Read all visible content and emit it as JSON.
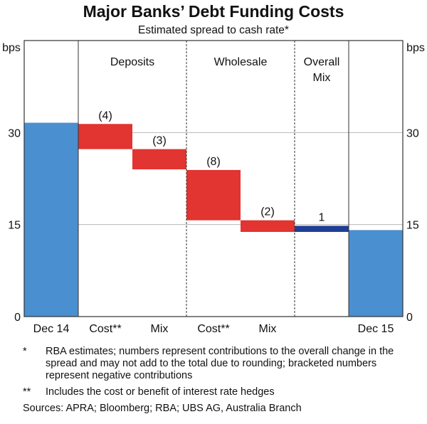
{
  "chart_data": {
    "type": "bar",
    "subtype": "waterfall",
    "title": "Major Banks’ Debt Funding Costs",
    "subtitle": "Estimated spread to cash rate*",
    "ylabel_left": "bps",
    "ylabel_right": "bps",
    "ylim": [
      0,
      45
    ],
    "yticks": [
      0,
      15,
      30
    ],
    "gridlines": [
      15,
      30
    ],
    "categories": [
      "Dec 14",
      "Cost**",
      "Mix",
      "Cost**",
      "Mix",
      "",
      "Dec 15"
    ],
    "groups": [
      {
        "label": "Deposits",
        "categories": [
          1,
          2
        ]
      },
      {
        "label": "Wholesale",
        "categories": [
          3,
          4
        ]
      },
      {
        "label": "Overall Mix",
        "lines": [
          "Overall",
          "Mix"
        ],
        "categories": [
          5
        ]
      }
    ],
    "bars": [
      {
        "category": "Dec 14",
        "from": 0,
        "to": 31.6,
        "type": "total",
        "label": ""
      },
      {
        "category": "Cost**",
        "from": 31.4,
        "to": 27.3,
        "type": "decrease",
        "label": "(4)"
      },
      {
        "category": "Mix",
        "from": 27.3,
        "to": 24.0,
        "type": "decrease",
        "label": "(3)"
      },
      {
        "category": "Cost**",
        "from": 23.9,
        "to": 15.7,
        "type": "decrease",
        "label": "(8)"
      },
      {
        "category": "Mix",
        "from": 15.7,
        "to": 13.8,
        "type": "decrease",
        "label": "(2)"
      },
      {
        "category": "Overall Mix",
        "from": 13.8,
        "to": 14.8,
        "type": "increase",
        "label": "1"
      },
      {
        "category": "Dec 15",
        "from": 0,
        "to": 14.1,
        "type": "total",
        "label": ""
      }
    ],
    "colors": {
      "total": "#4a8fcf",
      "decrease": "#e23430",
      "increase": "#1f3f95"
    }
  },
  "footnotes": [
    {
      "marker": "*",
      "text": "RBA estimates; numbers represent contributions to the overall change in the spread and may not add to the total due to rounding; bracketed numbers represent negative contributions"
    },
    {
      "marker": "**",
      "text": "Includes the cost or benefit of interest rate hedges"
    }
  ],
  "sources": "Sources:  APRA; Bloomberg; RBA; UBS AG, Australia Branch"
}
